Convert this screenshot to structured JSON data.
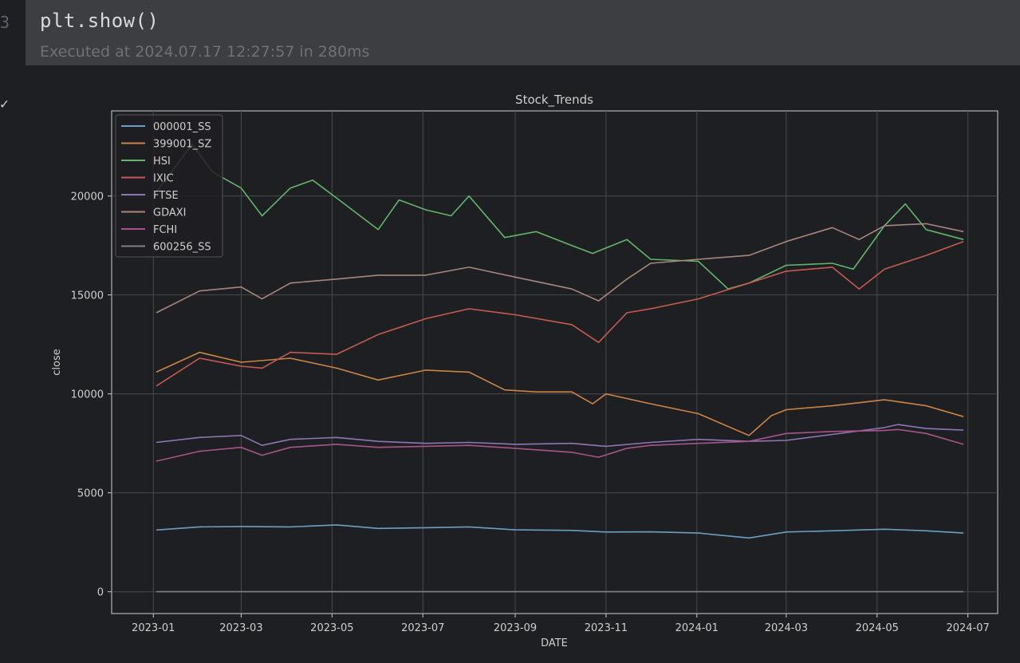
{
  "notebook": {
    "cell_number": "3",
    "code": "plt.show()",
    "status": "Executed at 2024.07.17 12:27:57 in 280ms",
    "gutter_marker": "✓"
  },
  "colors": {
    "background": "#1e1f22",
    "cell_background": "#3c3e42",
    "plot_background": "#1e1f22",
    "grid": "#4a4a4a"
  },
  "chart_data": {
    "type": "line",
    "title": "Stock_Trends",
    "xlabel": "DATE",
    "ylabel": "close",
    "xlim": [
      "2022-12-04",
      "2024-07-21"
    ],
    "ylim": [
      -1100,
      24300
    ],
    "x_ticks": [
      "2023-01",
      "2023-03",
      "2023-05",
      "2023-07",
      "2023-09",
      "2023-11",
      "2024-01",
      "2024-03",
      "2024-05",
      "2024-07"
    ],
    "y_ticks": [
      0,
      5000,
      10000,
      15000,
      20000
    ],
    "grid": true,
    "legend_position": "upper-left",
    "series": [
      {
        "name": "000001_SS",
        "color": "#6a9fc4",
        "points": [
          [
            "2023-01-03",
            3120
          ],
          [
            "2023-02-01",
            3280
          ],
          [
            "2023-03-01",
            3300
          ],
          [
            "2023-04-03",
            3280
          ],
          [
            "2023-05-04",
            3380
          ],
          [
            "2023-06-01",
            3200
          ],
          [
            "2023-07-03",
            3240
          ],
          [
            "2023-08-01",
            3280
          ],
          [
            "2023-09-01",
            3130
          ],
          [
            "2023-10-09",
            3100
          ],
          [
            "2023-11-01",
            3020
          ],
          [
            "2023-12-01",
            3030
          ],
          [
            "2024-01-02",
            2970
          ],
          [
            "2024-02-05",
            2720
          ],
          [
            "2024-03-01",
            3020
          ],
          [
            "2024-04-01",
            3080
          ],
          [
            "2024-05-06",
            3160
          ],
          [
            "2024-06-03",
            3080
          ],
          [
            "2024-06-28",
            2970
          ]
        ]
      },
      {
        "name": "399001_SZ",
        "color": "#cc8444",
        "points": [
          [
            "2023-01-03",
            11100
          ],
          [
            "2023-02-01",
            12100
          ],
          [
            "2023-03-01",
            11600
          ],
          [
            "2023-04-03",
            11800
          ],
          [
            "2023-05-04",
            11300
          ],
          [
            "2023-06-01",
            10700
          ],
          [
            "2023-07-03",
            11200
          ],
          [
            "2023-08-01",
            11100
          ],
          [
            "2023-08-25",
            10200
          ],
          [
            "2023-09-15",
            10100
          ],
          [
            "2023-10-09",
            10100
          ],
          [
            "2023-10-23",
            9500
          ],
          [
            "2023-11-01",
            10000
          ],
          [
            "2023-12-01",
            9500
          ],
          [
            "2024-01-02",
            9000
          ],
          [
            "2024-02-05",
            7900
          ],
          [
            "2024-02-20",
            8900
          ],
          [
            "2024-03-01",
            9200
          ],
          [
            "2024-04-01",
            9400
          ],
          [
            "2024-05-06",
            9700
          ],
          [
            "2024-06-03",
            9400
          ],
          [
            "2024-06-28",
            8850
          ]
        ]
      },
      {
        "name": "HSI",
        "color": "#62b56a",
        "points": [
          [
            "2023-01-03",
            20200
          ],
          [
            "2023-01-27",
            22600
          ],
          [
            "2023-02-10",
            21200
          ],
          [
            "2023-03-01",
            20400
          ],
          [
            "2023-03-15",
            19000
          ],
          [
            "2023-04-03",
            20400
          ],
          [
            "2023-04-18",
            20800
          ],
          [
            "2023-05-04",
            19900
          ],
          [
            "2023-06-01",
            18300
          ],
          [
            "2023-06-15",
            19800
          ],
          [
            "2023-07-03",
            19300
          ],
          [
            "2023-07-20",
            19000
          ],
          [
            "2023-08-01",
            20000
          ],
          [
            "2023-08-25",
            17900
          ],
          [
            "2023-09-15",
            18200
          ],
          [
            "2023-10-09",
            17500
          ],
          [
            "2023-10-23",
            17100
          ],
          [
            "2023-11-15",
            17800
          ],
          [
            "2023-12-01",
            16800
          ],
          [
            "2024-01-02",
            16700
          ],
          [
            "2024-01-22",
            15300
          ],
          [
            "2024-02-05",
            15600
          ],
          [
            "2024-03-01",
            16500
          ],
          [
            "2024-04-01",
            16600
          ],
          [
            "2024-04-15",
            16300
          ],
          [
            "2024-05-06",
            18500
          ],
          [
            "2024-05-20",
            19600
          ],
          [
            "2024-06-03",
            18300
          ],
          [
            "2024-06-28",
            17800
          ]
        ]
      },
      {
        "name": "IXIC",
        "color": "#c75b50",
        "points": [
          [
            "2023-01-03",
            10400
          ],
          [
            "2023-02-01",
            11800
          ],
          [
            "2023-03-01",
            11400
          ],
          [
            "2023-03-15",
            11300
          ],
          [
            "2023-04-03",
            12100
          ],
          [
            "2023-05-04",
            12000
          ],
          [
            "2023-06-01",
            13000
          ],
          [
            "2023-07-03",
            13800
          ],
          [
            "2023-08-01",
            14300
          ],
          [
            "2023-09-01",
            14000
          ],
          [
            "2023-10-09",
            13500
          ],
          [
            "2023-10-27",
            12600
          ],
          [
            "2023-11-15",
            14100
          ],
          [
            "2023-12-01",
            14300
          ],
          [
            "2024-01-02",
            14800
          ],
          [
            "2024-02-05",
            15600
          ],
          [
            "2024-03-01",
            16200
          ],
          [
            "2024-04-01",
            16400
          ],
          [
            "2024-04-19",
            15300
          ],
          [
            "2024-05-06",
            16300
          ],
          [
            "2024-06-03",
            17000
          ],
          [
            "2024-06-28",
            17700
          ]
        ]
      },
      {
        "name": "FTSE",
        "color": "#8e75b5",
        "points": [
          [
            "2023-01-03",
            7550
          ],
          [
            "2023-02-01",
            7800
          ],
          [
            "2023-03-01",
            7900
          ],
          [
            "2023-03-15",
            7400
          ],
          [
            "2023-04-03",
            7700
          ],
          [
            "2023-05-04",
            7800
          ],
          [
            "2023-06-01",
            7600
          ],
          [
            "2023-07-03",
            7500
          ],
          [
            "2023-08-01",
            7550
          ],
          [
            "2023-09-01",
            7450
          ],
          [
            "2023-10-09",
            7500
          ],
          [
            "2023-11-01",
            7350
          ],
          [
            "2023-12-01",
            7550
          ],
          [
            "2024-01-02",
            7700
          ],
          [
            "2024-02-05",
            7600
          ],
          [
            "2024-03-01",
            7650
          ],
          [
            "2024-04-01",
            7950
          ],
          [
            "2024-05-06",
            8300
          ],
          [
            "2024-05-15",
            8450
          ],
          [
            "2024-06-03",
            8250
          ],
          [
            "2024-06-28",
            8170
          ]
        ]
      },
      {
        "name": "GDAXI",
        "color": "#a8867d",
        "points": [
          [
            "2023-01-03",
            14100
          ],
          [
            "2023-02-01",
            15200
          ],
          [
            "2023-03-01",
            15400
          ],
          [
            "2023-03-15",
            14800
          ],
          [
            "2023-04-03",
            15600
          ],
          [
            "2023-05-04",
            15800
          ],
          [
            "2023-06-01",
            16000
          ],
          [
            "2023-07-03",
            16000
          ],
          [
            "2023-08-01",
            16400
          ],
          [
            "2023-09-01",
            15900
          ],
          [
            "2023-10-09",
            15300
          ],
          [
            "2023-10-27",
            14700
          ],
          [
            "2023-11-15",
            15800
          ],
          [
            "2023-12-01",
            16600
          ],
          [
            "2024-01-02",
            16800
          ],
          [
            "2024-02-05",
            17000
          ],
          [
            "2024-03-01",
            17700
          ],
          [
            "2024-04-01",
            18400
          ],
          [
            "2024-04-19",
            17800
          ],
          [
            "2024-05-06",
            18500
          ],
          [
            "2024-06-03",
            18600
          ],
          [
            "2024-06-28",
            18200
          ]
        ]
      },
      {
        "name": "FCHI",
        "color": "#a8548a",
        "points": [
          [
            "2023-01-03",
            6600
          ],
          [
            "2023-02-01",
            7100
          ],
          [
            "2023-03-01",
            7300
          ],
          [
            "2023-03-15",
            6900
          ],
          [
            "2023-04-03",
            7300
          ],
          [
            "2023-05-04",
            7450
          ],
          [
            "2023-06-01",
            7300
          ],
          [
            "2023-07-03",
            7350
          ],
          [
            "2023-08-01",
            7400
          ],
          [
            "2023-09-01",
            7250
          ],
          [
            "2023-10-09",
            7050
          ],
          [
            "2023-10-27",
            6800
          ],
          [
            "2023-11-15",
            7250
          ],
          [
            "2023-12-01",
            7400
          ],
          [
            "2024-01-02",
            7500
          ],
          [
            "2024-02-05",
            7600
          ],
          [
            "2024-03-01",
            8000
          ],
          [
            "2024-04-01",
            8100
          ],
          [
            "2024-05-06",
            8150
          ],
          [
            "2024-05-15",
            8200
          ],
          [
            "2024-06-03",
            8000
          ],
          [
            "2024-06-28",
            7450
          ]
        ]
      },
      {
        "name": "600256_SS",
        "color": "#808080",
        "points": [
          [
            "2023-01-03",
            5
          ],
          [
            "2023-07-03",
            4
          ],
          [
            "2024-01-02",
            4
          ],
          [
            "2024-06-28",
            4
          ]
        ]
      }
    ]
  }
}
